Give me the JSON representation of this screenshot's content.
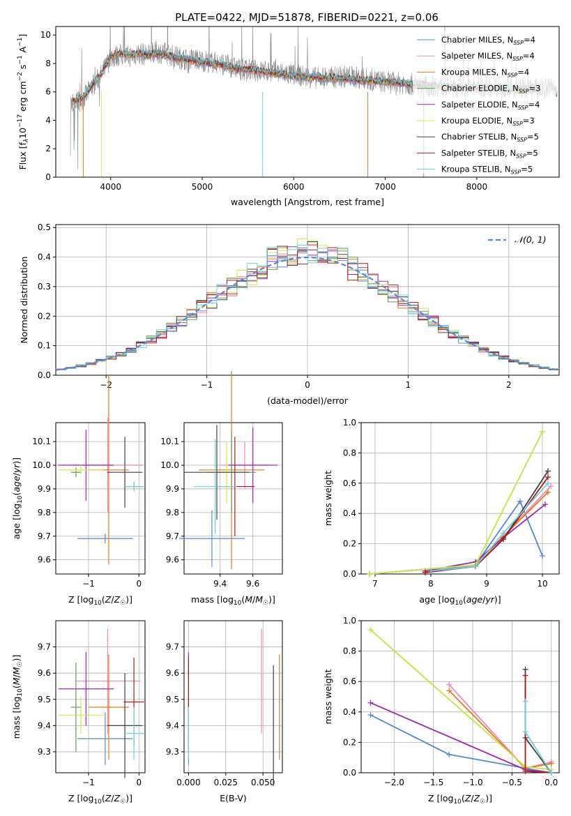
{
  "figure": {
    "title": "PLATE=0422, MJD=51878, FIBERID=0221, z=0.06"
  },
  "colors": {
    "Chabrier MILES": "#5a86d6",
    "Salpeter MILES": "#ee88c0",
    "Kroupa MILES": "#e47a1c",
    "Chabrier ELODIE": "#5aa05a",
    "Salpeter ELODIE": "#9a2ab0",
    "Kroupa ELODIE": "#d2e84a",
    "Chabrier STELIB": "#404040",
    "Salpeter STELIB": "#b01818",
    "Kroupa STELIB": "#6ad2dc",
    "data": "#8a8a8a",
    "normal": "#5a86d6"
  },
  "chart_data": [
    {
      "type": "line",
      "title": "PLATE=0422, MJD=51878, FIBERID=0221, z=0.06",
      "xlabel": "wavelength [Angstrom, rest frame]",
      "ylabel": "Flux [f_λ10^-17 erg cm^-2 s^-1 A^-1]",
      "xlim": [
        3400,
        8900
      ],
      "ylim": [
        0,
        10.6
      ],
      "xticks": [
        4000,
        5000,
        6000,
        7000,
        8000
      ],
      "yticks": [
        0,
        2,
        4,
        6,
        8,
        10
      ],
      "grid": false,
      "legend_position": "upper-right",
      "legend": [
        {
          "name": "Chabrier MILES, N",
          "sub": "SSP",
          "suffix": "=4"
        },
        {
          "name": "Salpeter MILES, N",
          "sub": "SSP",
          "suffix": "=4"
        },
        {
          "name": "Kroupa MILES, N",
          "sub": "SSP",
          "suffix": "=4"
        },
        {
          "name": "Chabrier ELODIE, N",
          "sub": "SSP",
          "suffix": "=3"
        },
        {
          "name": "Salpeter ELODIE, N",
          "sub": "SSP",
          "suffix": "=4"
        },
        {
          "name": "Kroupa ELODIE, N",
          "sub": "SSP",
          "suffix": "=3"
        },
        {
          "name": "Chabrier STELIB, N",
          "sub": "SSP",
          "suffix": "=5"
        },
        {
          "name": "Salpeter STELIB, N",
          "sub": "SSP",
          "suffix": "=5"
        },
        {
          "name": "Kroupa STELIB, N",
          "sub": "SSP",
          "suffix": "=5"
        }
      ],
      "data_x": [
        3600,
        3700,
        3800,
        3900,
        4000,
        4100,
        4200,
        4300,
        4400,
        4500,
        4600,
        4700,
        4800,
        4900,
        5000,
        5200,
        5400,
        5600,
        5800,
        6000,
        6200,
        6400,
        6600,
        6800,
        7000,
        7200,
        7400,
        7600,
        7800,
        8000,
        8200,
        8400,
        8600,
        8800
      ],
      "data_y": [
        5.2,
        5.5,
        6.4,
        7.2,
        8.4,
        8.6,
        8.5,
        8.7,
        8.6,
        8.8,
        8.7,
        8.5,
        8.3,
        8.3,
        8.2,
        8.0,
        7.6,
        7.5,
        7.4,
        7.2,
        7.0,
        7.0,
        7.1,
        6.9,
        6.7,
        6.6,
        6.4,
        6.4,
        6.3,
        6.3,
        6.4,
        6.3,
        6.2,
        6.3
      ],
      "model_x": [
        3580,
        3700,
        3800,
        3900,
        4000,
        4100,
        4200,
        4300,
        4400,
        4500,
        4600,
        4700,
        4800,
        4900,
        5000,
        5200,
        5400,
        5600,
        5800,
        6000,
        6200,
        6400,
        6600,
        6800,
        7000,
        7200,
        7400,
        7600,
        7800,
        8000,
        8200,
        8400,
        8600,
        8700
      ],
      "model_y": [
        5.3,
        5.6,
        6.5,
        7.3,
        8.5,
        8.7,
        8.6,
        8.7,
        8.6,
        8.7,
        8.6,
        8.4,
        8.3,
        8.2,
        8.1,
        7.9,
        7.6,
        7.5,
        7.3,
        7.1,
        7.0,
        7.0,
        6.9,
        6.8,
        6.7,
        6.6,
        6.5,
        6.4,
        6.3,
        6.3,
        6.3,
        6.2,
        6.2,
        6.2
      ]
    },
    {
      "type": "histogram",
      "xlabel": "(data-model)/error",
      "ylabel": "Normed distribution",
      "xlim": [
        -2.5,
        2.5
      ],
      "ylim": [
        0,
        0.51
      ],
      "xticks": [
        -2,
        -1,
        0,
        1,
        2
      ],
      "yticks": [
        0.0,
        0.1,
        0.2,
        0.3,
        0.4,
        0.5
      ],
      "grid": true,
      "legend_position": "upper-right",
      "legend": [
        {
          "name": "𝒩(0, 1)"
        }
      ],
      "normal": {
        "mu": 0,
        "sigma": 1
      }
    },
    {
      "type": "scatter",
      "xlabel": "Z [log10(Z/Z☉)]",
      "ylabel": "age  [log10(age/yr)]",
      "xlim": [
        -1.65,
        0.12
      ],
      "ylim": [
        9.54,
        10.18
      ],
      "xticks": [
        -1,
        0
      ],
      "yticks": [
        9.6,
        9.7,
        9.8,
        9.9,
        10.0,
        10.1
      ],
      "grid": true,
      "points": [
        {
          "series": "Chabrier MILES",
          "x": -0.67,
          "xerr": 0.55,
          "y": 9.69,
          "yerr": 0.02
        },
        {
          "series": "Salpeter MILES",
          "x": -0.62,
          "xerr": 0.7,
          "y": 10.0,
          "yerr": 0.2
        },
        {
          "series": "Kroupa MILES",
          "x": -0.6,
          "xerr": 0.4,
          "y": 9.98,
          "yerr": 0.4
        },
        {
          "series": "Chabrier ELODIE",
          "x": -1.25,
          "xerr": 0.1,
          "y": 9.97,
          "yerr": 0.02
        },
        {
          "series": "Salpeter ELODIE",
          "x": -1.05,
          "xerr": 0.55,
          "y": 10.0,
          "yerr": 0.15
        },
        {
          "series": "Kroupa ELODIE",
          "x": -1.15,
          "xerr": 0.45,
          "y": 9.98,
          "yerr": 0.02
        },
        {
          "series": "Chabrier STELIB",
          "x": -0.28,
          "xerr": 0.35,
          "y": 9.97,
          "yerr": 0.15
        },
        {
          "series": "Salpeter STELIB",
          "x": -0.1,
          "xerr": 0.2,
          "y": 9.91,
          "yerr": 0.02
        },
        {
          "series": "Kroupa STELIB",
          "x": -0.1,
          "xerr": 0.2,
          "y": 9.91,
          "yerr": 0.02
        }
      ]
    },
    {
      "type": "scatter",
      "xlabel": "mass [log10(M/M☉)]",
      "ylabel": "",
      "xlim": [
        9.18,
        9.78
      ],
      "ylim": [
        9.54,
        10.18
      ],
      "xticks": [
        9.4,
        9.6
      ],
      "yticks": [
        9.6,
        9.7,
        9.8,
        9.9,
        10.0,
        10.1
      ],
      "grid": true,
      "points": [
        {
          "series": "Chabrier MILES",
          "x": 9.35,
          "xerr": 0.2,
          "y": 9.69,
          "yerr": 0.12
        },
        {
          "series": "Salpeter MILES",
          "x": 9.55,
          "xerr": 0.15,
          "y": 10.0,
          "yerr": 0.1
        },
        {
          "series": "Kroupa MILES",
          "x": 9.47,
          "xerr": 0.2,
          "y": 9.98,
          "yerr": 0.42
        },
        {
          "series": "Chabrier ELODIE",
          "x": 9.47,
          "xerr": 0.15,
          "y": 9.97,
          "yerr": 0.17
        },
        {
          "series": "Salpeter ELODIE",
          "x": 9.6,
          "xerr": 0.15,
          "y": 10.0,
          "yerr": 0.16
        },
        {
          "series": "Kroupa ELODIE",
          "x": 9.44,
          "xerr": 0.12,
          "y": 9.97,
          "yerr": 0.13
        },
        {
          "series": "Chabrier STELIB",
          "x": 9.38,
          "xerr": 0.2,
          "y": 9.97,
          "yerr": 0.2
        },
        {
          "series": "Salpeter STELIB",
          "x": 9.49,
          "xerr": 0.12,
          "y": 9.91,
          "yerr": 0.21
        },
        {
          "series": "Kroupa STELIB",
          "x": 9.37,
          "xerr": 0.13,
          "y": 9.91,
          "yerr": 0.2
        }
      ]
    },
    {
      "type": "line",
      "xlabel": "age  [log10(age/yr)]",
      "ylabel": "mass weight",
      "xlim": [
        6.75,
        10.3
      ],
      "ylim": [
        0,
        1.0
      ],
      "xticks": [
        7,
        8,
        9,
        10
      ],
      "yticks": [
        0.0,
        0.2,
        0.4,
        0.6,
        0.8,
        1.0
      ],
      "grid": true,
      "series": [
        {
          "name": "Chabrier MILES",
          "x": [
            8.0,
            8.8,
            9.6,
            10.0
          ],
          "y": [
            0.02,
            0.06,
            0.48,
            0.12
          ]
        },
        {
          "name": "Salpeter MILES",
          "x": [
            6.9,
            8.8,
            9.3,
            10.15
          ],
          "y": [
            0.0,
            0.06,
            0.25,
            0.58
          ]
        },
        {
          "name": "Kroupa MILES",
          "x": [
            6.9,
            8.8,
            9.3,
            10.1
          ],
          "y": [
            0.0,
            0.06,
            0.25,
            0.54
          ]
        },
        {
          "name": "Chabrier ELODIE",
          "x": [
            6.9,
            8.8,
            10.0
          ],
          "y": [
            0.0,
            0.06,
            0.94
          ]
        },
        {
          "name": "Salpeter ELODIE",
          "x": [
            7.9,
            8.8,
            9.3,
            10.05
          ],
          "y": [
            0.02,
            0.08,
            0.24,
            0.46
          ]
        },
        {
          "name": "Kroupa ELODIE",
          "x": [
            6.9,
            8.8,
            10.0
          ],
          "y": [
            0.0,
            0.06,
            0.94
          ]
        },
        {
          "name": "Chabrier STELIB",
          "x": [
            7.9,
            8.8,
            9.3,
            10.1
          ],
          "y": [
            0.01,
            0.05,
            0.23,
            0.68
          ]
        },
        {
          "name": "Salpeter STELIB",
          "x": [
            7.9,
            8.8,
            9.3,
            10.1
          ],
          "y": [
            0.01,
            0.05,
            0.23,
            0.64
          ]
        },
        {
          "name": "Kroupa STELIB",
          "x": [
            8.0,
            8.8,
            9.3,
            10.1
          ],
          "y": [
            0.02,
            0.05,
            0.27,
            0.6
          ]
        }
      ]
    },
    {
      "type": "scatter",
      "xlabel": "Z [log10(Z/Z☉)]",
      "ylabel": "mass [log10(M/M☉)]",
      "xlim": [
        -1.65,
        0.12
      ],
      "ylim": [
        9.22,
        9.8
      ],
      "xticks": [
        -1,
        0
      ],
      "yticks": [
        9.3,
        9.4,
        9.5,
        9.6,
        9.7
      ],
      "grid": true,
      "points": [
        {
          "series": "Chabrier MILES",
          "x": -0.67,
          "xerr": 0.55,
          "y": 9.35,
          "yerr": 0.1
        },
        {
          "series": "Salpeter MILES",
          "x": -0.62,
          "xerr": 0.65,
          "y": 9.57,
          "yerr": 0.2
        },
        {
          "series": "Kroupa MILES",
          "x": -0.6,
          "xerr": 0.4,
          "y": 9.47,
          "yerr": 0.2
        },
        {
          "series": "Chabrier ELODIE",
          "x": -1.25,
          "xerr": 0.1,
          "y": 9.47,
          "yerr": 0.17
        },
        {
          "series": "Salpeter ELODIE",
          "x": -1.05,
          "xerr": 0.55,
          "y": 9.54,
          "yerr": 0.14
        },
        {
          "series": "Kroupa ELODIE",
          "x": -1.15,
          "xerr": 0.45,
          "y": 9.44,
          "yerr": 0.07
        },
        {
          "series": "Chabrier STELIB",
          "x": -0.28,
          "xerr": 0.35,
          "y": 9.4,
          "yerr": 0.2
        },
        {
          "series": "Salpeter STELIB",
          "x": -0.1,
          "xerr": 0.2,
          "y": 9.49,
          "yerr": 0.17
        },
        {
          "series": "Kroupa STELIB",
          "x": -0.1,
          "xerr": 0.2,
          "y": 9.37,
          "yerr": 0.1
        }
      ]
    },
    {
      "type": "scatter",
      "xlabel": "E(B-V)",
      "ylabel": "",
      "xlim": [
        -0.003,
        0.063
      ],
      "ylim": [
        9.22,
        9.8
      ],
      "xticks": [
        0.0,
        0.025,
        0.05
      ],
      "yticks": [
        9.3,
        9.4,
        9.5,
        9.6,
        9.7
      ],
      "grid": true,
      "points": [
        {
          "series": "Chabrier MILES",
          "x": 0.0,
          "y": 9.35,
          "yerr": 0.1
        },
        {
          "series": "Salpeter MILES",
          "x": 0.049,
          "y": 9.57,
          "yerr": 0.2
        },
        {
          "series": "Kroupa MILES",
          "x": 0.061,
          "y": 9.47,
          "yerr": 0.2
        },
        {
          "series": "Chabrier ELODIE",
          "x": 0.0,
          "y": 9.47,
          "yerr": 0.17
        },
        {
          "series": "Salpeter ELODIE",
          "x": 0.0,
          "y": 9.54,
          "yerr": 0.14
        },
        {
          "series": "Kroupa ELODIE",
          "x": 0.0,
          "y": 9.44,
          "yerr": 0.07
        },
        {
          "series": "Chabrier STELIB",
          "x": 0.057,
          "y": 9.4,
          "yerr": 0.23
        },
        {
          "series": "Salpeter STELIB",
          "x": 0.0,
          "y": 9.49,
          "yerr": 0.17
        },
        {
          "series": "Kroupa STELIB",
          "x": 0.0,
          "y": 9.37,
          "yerr": 0.1
        }
      ]
    },
    {
      "type": "line",
      "xlabel": "Z [log10(Z/Z☉)]",
      "ylabel": "mass weight",
      "xlim": [
        -2.42,
        0.1
      ],
      "ylim": [
        0,
        1.0
      ],
      "xticks": [
        -2.0,
        -1.5,
        -1.0,
        -0.5,
        0.0
      ],
      "yticks": [
        0.0,
        0.2,
        0.4,
        0.6,
        0.8,
        1.0
      ],
      "grid": true,
      "series": [
        {
          "name": "Chabrier MILES",
          "x": [
            -2.3,
            -1.3,
            -0.33,
            0.0
          ],
          "y": [
            0.38,
            0.12,
            0.03,
            0.0
          ]
        },
        {
          "name": "Salpeter MILES",
          "x": [
            -1.3,
            -0.33,
            0.0
          ],
          "y": [
            0.58,
            0.03,
            0.07
          ]
        },
        {
          "name": "Kroupa MILES",
          "x": [
            -1.3,
            -0.33,
            0.0
          ],
          "y": [
            0.54,
            0.03,
            0.06
          ]
        },
        {
          "name": "Chabrier ELODIE",
          "x": [
            -2.3,
            -0.33,
            0.0
          ],
          "y": [
            0.94,
            0.04,
            0.02
          ]
        },
        {
          "name": "Salpeter ELODIE",
          "x": [
            -2.3,
            -0.33,
            0.0
          ],
          "y": [
            0.46,
            0.02,
            0.0
          ]
        },
        {
          "name": "Kroupa ELODIE",
          "x": [
            -2.3,
            -0.33,
            0.0
          ],
          "y": [
            0.94,
            0.04,
            0.02
          ]
        },
        {
          "name": "Chabrier STELIB",
          "x": [
            -0.33,
            -0.33,
            0.0
          ],
          "y": [
            0.68,
            0.23,
            0.0
          ]
        },
        {
          "name": "Salpeter STELIB",
          "x": [
            -0.33,
            -0.33,
            0.0
          ],
          "y": [
            0.64,
            0.01,
            0.0
          ]
        },
        {
          "name": "Kroupa STELIB",
          "x": [
            -0.33,
            -0.33,
            0.0
          ],
          "y": [
            0.47,
            0.27,
            0.0
          ]
        }
      ]
    }
  ]
}
